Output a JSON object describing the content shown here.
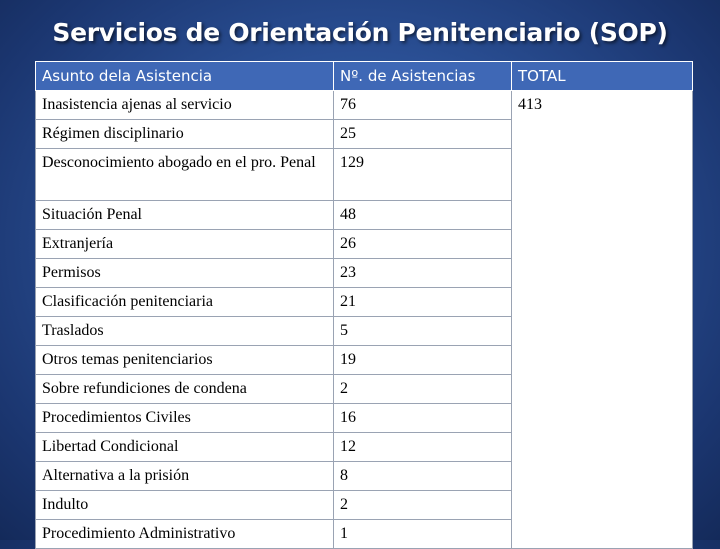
{
  "title": "Servicios de Orientación Penitenciario (SOP)",
  "table": {
    "headers": [
      "Asunto dela Asistencia",
      "Nº. de Asistencias",
      "TOTAL"
    ],
    "total": "413",
    "rows": [
      {
        "asunto": "Inasistencia ajenas al servicio",
        "num": "76"
      },
      {
        "asunto": "Régimen disciplinario",
        "num": "25"
      },
      {
        "asunto": "Desconocimiento abogado en el pro. Penal",
        "num": "129"
      },
      {
        "asunto": "Situación Penal",
        "num": "48"
      },
      {
        "asunto": "Extranjería",
        "num": "26"
      },
      {
        "asunto": "Permisos",
        "num": "23"
      },
      {
        "asunto": "Clasificación penitenciaria",
        "num": "21"
      },
      {
        "asunto": "Traslados",
        "num": "5"
      },
      {
        "asunto": "Otros temas penitenciarios",
        "num": "19"
      },
      {
        "asunto": "Sobre refundiciones de condena",
        "num": "2"
      },
      {
        "asunto": "Procedimientos  Civiles",
        "num": "16"
      },
      {
        "asunto": "Libertad Condicional",
        "num": "12"
      },
      {
        "asunto": "Alternativa a la prisión",
        "num": "8"
      },
      {
        "asunto": "Indulto",
        "num": "2"
      },
      {
        "asunto": "Procedimiento Administrativo",
        "num": "1"
      }
    ]
  }
}
